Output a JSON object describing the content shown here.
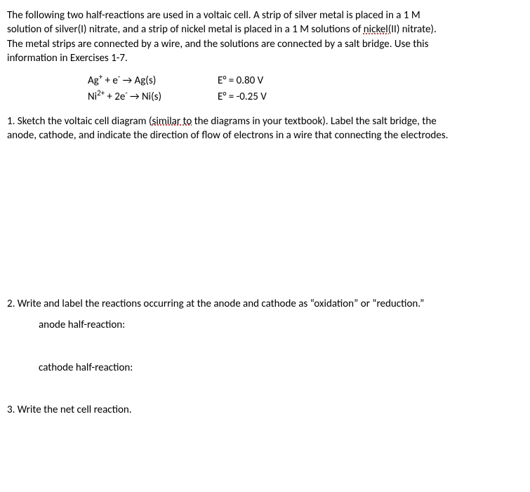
{
  "intro": {
    "line1a": "The following two half-reactions are used in a voltaic cell.  A strip of silver metal is placed in a 1 M",
    "line2a": "solution of silver(I) nitrate, and a strip of nickel metal is placed in a 1 M solutions of ",
    "line2_squiggle": "nickel(",
    "line2b": "II) nitrate).",
    "line3": "The metal strips are connected by a wire, and the solutions are connected by a salt bridge.  Use this",
    "line4": "information in Exercises 1-7."
  },
  "equations": {
    "row1": {
      "lhs_html": "Ag<sup>+</sup> + e<sup>-</sup> → Ag(s)",
      "rhs": "E° = 0.80 V"
    },
    "row2": {
      "lhs_html": "Ni<sup>2+</sup> + 2e<sup>-</sup> → Ni(s)",
      "rhs": "E° = -0.25 V"
    }
  },
  "q1": {
    "pre": "1.  Sketch the voltaic cell diagram (",
    "squiggle": "similar to",
    "post": " the diagrams in your textbook).  Label the salt bridge, the",
    "line2": "anode, cathode, and indicate the direction of flow of electrons in a wire that connecting the electrodes."
  },
  "q2": {
    "line1": "2.  Write and label the reactions occurring at the anode and cathode as “oxidation” or “reduction.”",
    "anode": "anode half-reaction:",
    "cathode": "cathode half-reaction:"
  },
  "q3": {
    "line1": "3.  Write the net cell reaction."
  }
}
